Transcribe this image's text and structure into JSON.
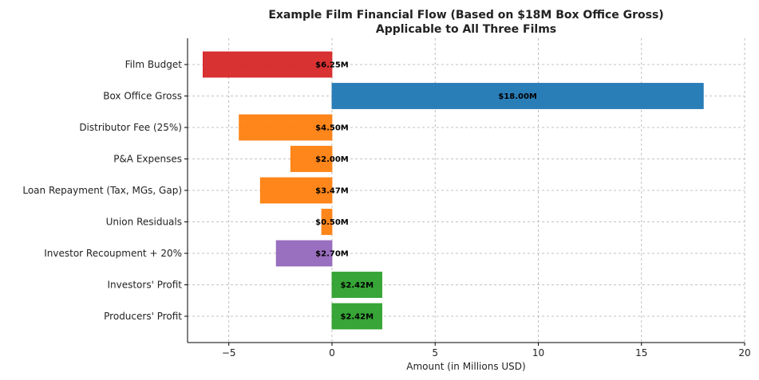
{
  "chart_data": {
    "type": "bar",
    "orientation": "horizontal",
    "title": "Example Film Financial Flow (Based on $18M Box Office Gross)",
    "subtitle": "Applicable to All Three Films",
    "xlabel": "Amount (in Millions USD)",
    "ylabel": "",
    "xlim": [
      -7,
      20
    ],
    "xticks": [
      -5,
      0,
      5,
      10,
      15,
      20
    ],
    "xtick_labels": [
      "−5",
      "0",
      "5",
      "10",
      "15",
      "20"
    ],
    "grid": true,
    "categories": [
      "Film Budget",
      "Box Office Gross",
      "Distributor Fee (25%)",
      "P&A Expenses",
      "Loan Repayment (Tax, MGs, Gap)",
      "Union Residuals",
      "Investor Recoupment + 20%",
      "Investors' Profit",
      "Producers' Profit"
    ],
    "values": [
      -6.25,
      18.0,
      -4.5,
      -2.0,
      -3.47,
      -0.5,
      -2.7,
      2.42,
      2.42
    ],
    "data_labels": [
      "$6.25M",
      "$18.00M",
      "$4.50M",
      "$2.00M",
      "$3.47M",
      "$0.50M",
      "$2.70M",
      "$2.42M",
      "$2.42M"
    ],
    "colors": [
      "#d62728",
      "#1f77b4",
      "#ff7f0e",
      "#ff7f0e",
      "#ff7f0e",
      "#ff7f0e",
      "#9467bd",
      "#2ca02c",
      "#2ca02c"
    ]
  }
}
